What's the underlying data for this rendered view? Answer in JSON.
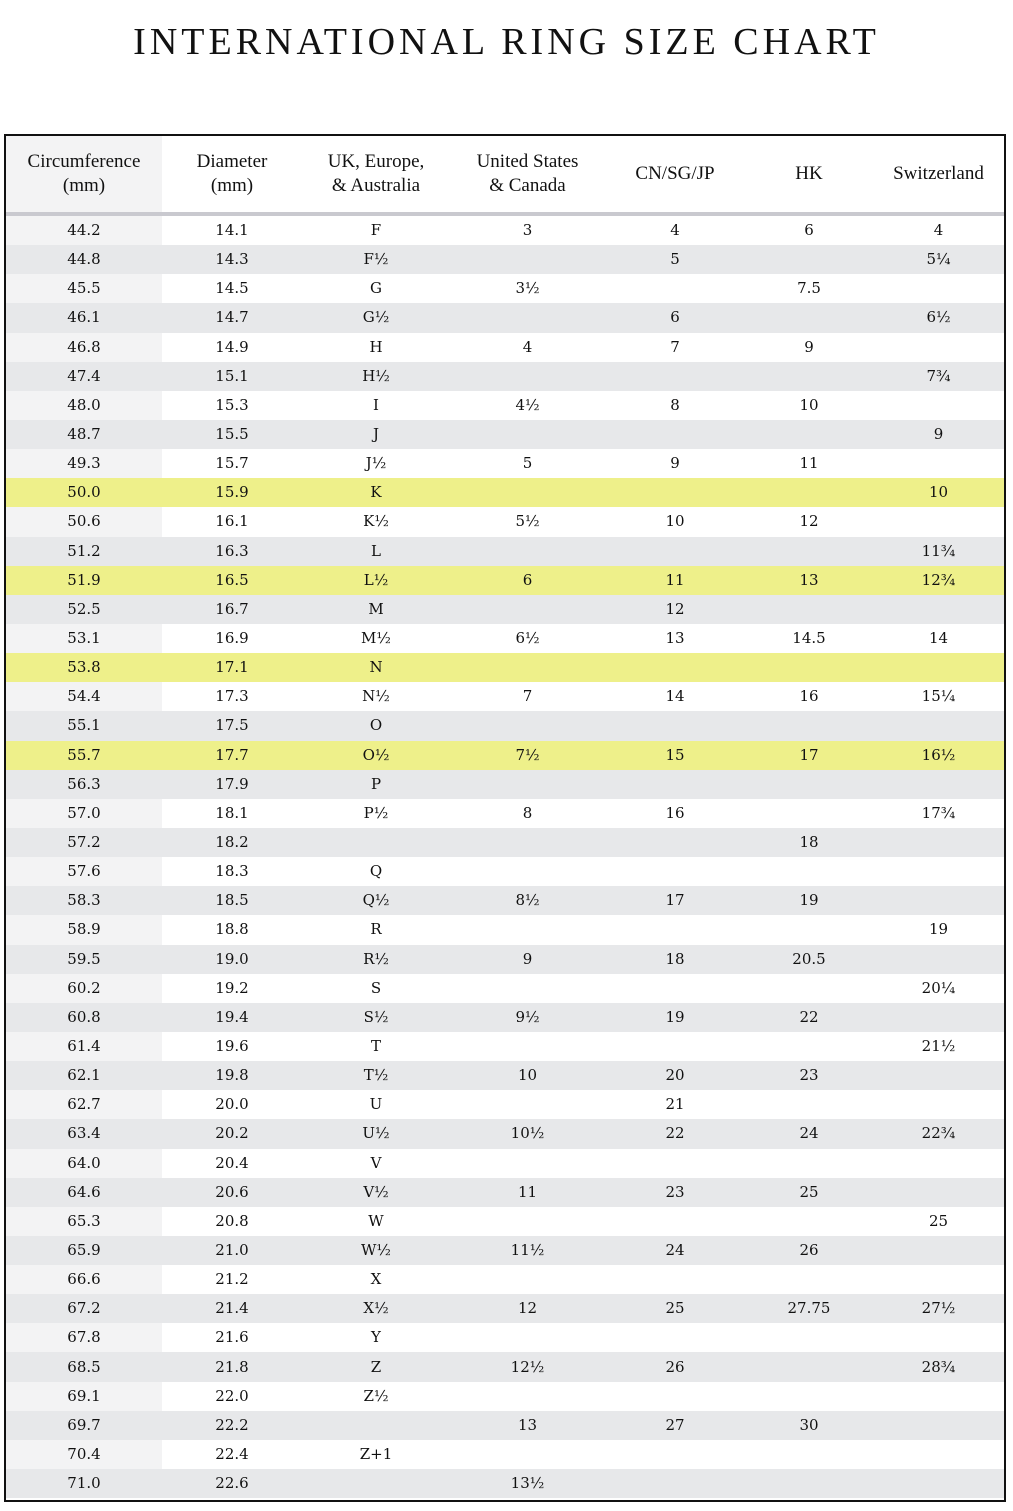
{
  "title": "INTERNATIONAL RING SIZE CHART",
  "colors": {
    "stripe": "#e7e8ea",
    "highlight": "#eef08a",
    "first_column": "#f3f3f4"
  },
  "columns": [
    "Circumference\n(mm)",
    "Diameter\n(mm)",
    "UK, Europe,\n& Australia",
    "United States\n& Canada",
    "CN/SG/JP",
    "HK",
    "Switzerland"
  ],
  "rows": [
    {
      "cells": [
        "44.2",
        "14.1",
        "F",
        "3",
        "4",
        "6",
        "4"
      ]
    },
    {
      "cells": [
        "44.8",
        "14.3",
        "F½",
        "",
        "5",
        "",
        "5¼"
      ]
    },
    {
      "cells": [
        "45.5",
        "14.5",
        "G",
        "3½",
        "",
        "7.5",
        ""
      ]
    },
    {
      "cells": [
        "46.1",
        "14.7",
        "G½",
        "",
        "6",
        "",
        "6½"
      ]
    },
    {
      "cells": [
        "46.8",
        "14.9",
        "H",
        "4",
        "7",
        "9",
        ""
      ]
    },
    {
      "cells": [
        "47.4",
        "15.1",
        "H½",
        "",
        "",
        "",
        "7¾"
      ]
    },
    {
      "cells": [
        "48.0",
        "15.3",
        "I",
        "4½",
        "8",
        "10",
        ""
      ]
    },
    {
      "cells": [
        "48.7",
        "15.5",
        "J",
        "",
        "",
        "",
        "9"
      ]
    },
    {
      "cells": [
        "49.3",
        "15.7",
        "J½",
        "5",
        "9",
        "11",
        ""
      ]
    },
    {
      "cells": [
        "50.0",
        "15.9",
        "K",
        "",
        "",
        "",
        "10"
      ],
      "highlight": true
    },
    {
      "cells": [
        "50.6",
        "16.1",
        "K½",
        "5½",
        "10",
        "12",
        ""
      ]
    },
    {
      "cells": [
        "51.2",
        "16.3",
        "L",
        "",
        "",
        "",
        "11¾"
      ]
    },
    {
      "cells": [
        "51.9",
        "16.5",
        "L½",
        "6",
        "11",
        "13",
        "12¾"
      ],
      "highlight": true
    },
    {
      "cells": [
        "52.5",
        "16.7",
        "M",
        "",
        "12",
        "",
        ""
      ]
    },
    {
      "cells": [
        "53.1",
        "16.9",
        "M½",
        "6½",
        "13",
        "14.5",
        "14"
      ]
    },
    {
      "cells": [
        "53.8",
        "17.1",
        "N",
        "",
        "",
        "",
        ""
      ],
      "highlight": true
    },
    {
      "cells": [
        "54.4",
        "17.3",
        "N½",
        "7",
        "14",
        "16",
        "15¼"
      ]
    },
    {
      "cells": [
        "55.1",
        "17.5",
        "O",
        "",
        "",
        "",
        ""
      ]
    },
    {
      "cells": [
        "55.7",
        "17.7",
        "O½",
        "7½",
        "15",
        "17",
        "16½"
      ],
      "highlight": true
    },
    {
      "cells": [
        "56.3",
        "17.9",
        "P",
        "",
        "",
        "",
        ""
      ]
    },
    {
      "cells": [
        "57.0",
        "18.1",
        "P½",
        "8",
        "16",
        "",
        "17¾"
      ]
    },
    {
      "cells": [
        "57.2",
        "18.2",
        "",
        "",
        "",
        "18",
        ""
      ]
    },
    {
      "cells": [
        "57.6",
        "18.3",
        "Q",
        "",
        "",
        "",
        ""
      ]
    },
    {
      "cells": [
        "58.3",
        "18.5",
        "Q½",
        "8½",
        "17",
        "19",
        ""
      ]
    },
    {
      "cells": [
        "58.9",
        "18.8",
        "R",
        "",
        "",
        "",
        "19"
      ]
    },
    {
      "cells": [
        "59.5",
        "19.0",
        "R½",
        "9",
        "18",
        "20.5",
        ""
      ]
    },
    {
      "cells": [
        "60.2",
        "19.2",
        "S",
        "",
        "",
        "",
        "20¼"
      ]
    },
    {
      "cells": [
        "60.8",
        "19.4",
        "S½",
        "9½",
        "19",
        "22",
        ""
      ]
    },
    {
      "cells": [
        "61.4",
        "19.6",
        "T",
        "",
        "",
        "",
        "21½"
      ]
    },
    {
      "cells": [
        "62.1",
        "19.8",
        "T½",
        "10",
        "20",
        "23",
        ""
      ]
    },
    {
      "cells": [
        "62.7",
        "20.0",
        "U",
        "",
        "21",
        "",
        ""
      ]
    },
    {
      "cells": [
        "63.4",
        "20.2",
        "U½",
        "10½",
        "22",
        "24",
        "22¾"
      ]
    },
    {
      "cells": [
        "64.0",
        "20.4",
        "V",
        "",
        "",
        "",
        ""
      ]
    },
    {
      "cells": [
        "64.6",
        "20.6",
        "V½",
        "11",
        "23",
        "25",
        ""
      ]
    },
    {
      "cells": [
        "65.3",
        "20.8",
        "W",
        "",
        "",
        "",
        "25"
      ]
    },
    {
      "cells": [
        "65.9",
        "21.0",
        "W½",
        "11½",
        "24",
        "26",
        ""
      ]
    },
    {
      "cells": [
        "66.6",
        "21.2",
        "X",
        "",
        "",
        "",
        ""
      ]
    },
    {
      "cells": [
        "67.2",
        "21.4",
        "X½",
        "12",
        "25",
        "27.75",
        "27½"
      ]
    },
    {
      "cells": [
        "67.8",
        "21.6",
        "Y",
        "",
        "",
        "",
        ""
      ]
    },
    {
      "cells": [
        "68.5",
        "21.8",
        "Z",
        "12½",
        "26",
        "",
        "28¾"
      ]
    },
    {
      "cells": [
        "69.1",
        "22.0",
        "Z½",
        "",
        "",
        "",
        ""
      ]
    },
    {
      "cells": [
        "69.7",
        "22.2",
        "",
        "13",
        "27",
        "30",
        ""
      ]
    },
    {
      "cells": [
        "70.4",
        "22.4",
        "Z+1",
        "",
        "",
        "",
        ""
      ]
    },
    {
      "cells": [
        "71.0",
        "22.6",
        "",
        "13½",
        "",
        "",
        ""
      ]
    }
  ]
}
